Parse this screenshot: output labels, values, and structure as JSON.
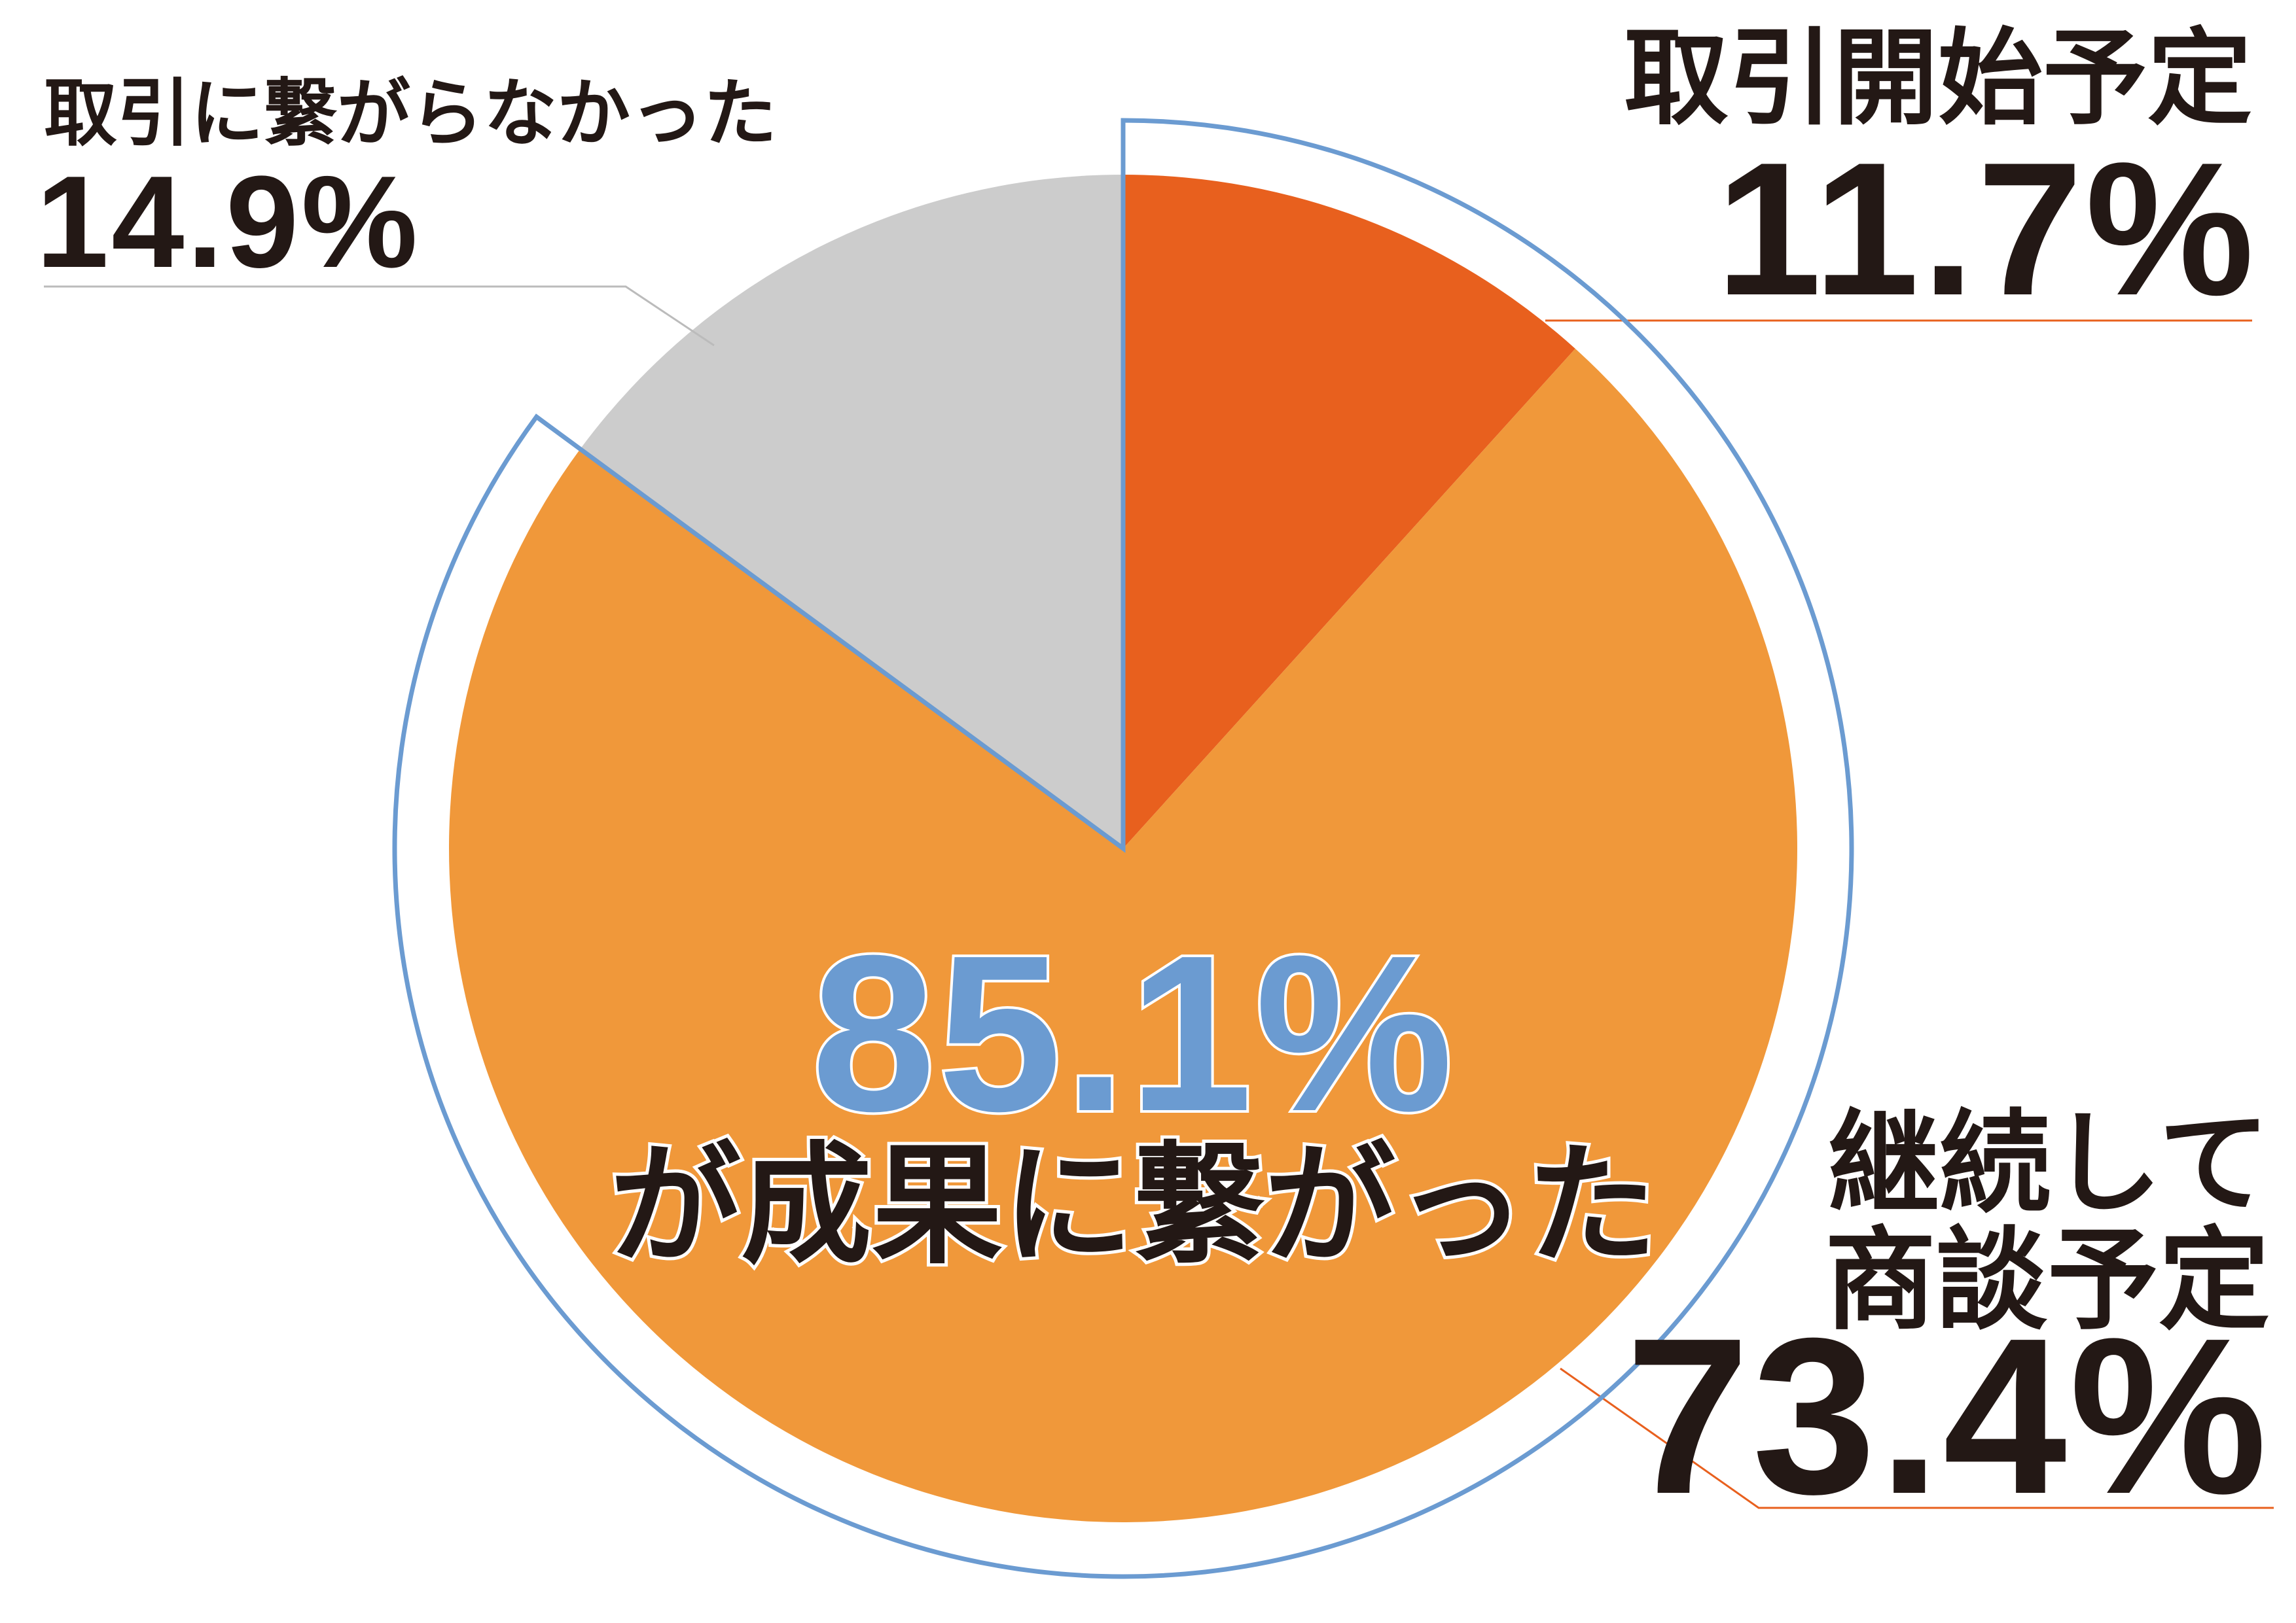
{
  "chart_data": {
    "type": "pie",
    "categories": [
      "取引開始予定",
      "継続して商談予定",
      "取引に繋がらなかった"
    ],
    "values": [
      11.7,
      73.4,
      14.9
    ],
    "value_labels": [
      "11.7%",
      "73.4%",
      "14.9%"
    ],
    "colors": [
      "#e8601e",
      "#f0983a",
      "#cccccc"
    ],
    "highlight": {
      "value": 85.1,
      "value_label": "85.1%",
      "text": "が成果に繋がった",
      "color": "#6b9bd1"
    }
  }
}
